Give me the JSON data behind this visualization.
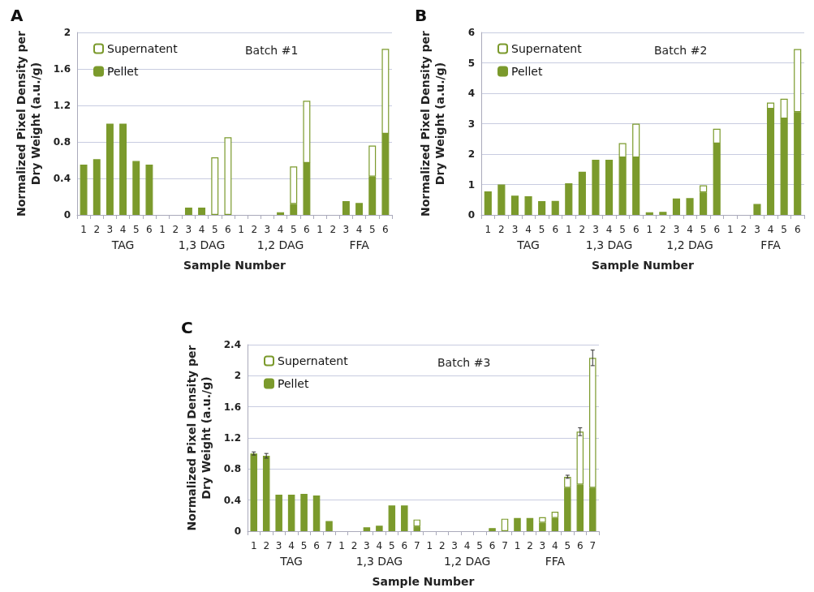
{
  "chart_data": [
    {
      "type": "bar",
      "title": "A",
      "subtitle": "Batch #1",
      "xlabel": "Sample Number",
      "ylabel": "Normalized Pixel Density per\nDry Weight (a.u./g)",
      "stacked": true,
      "legend": "top left",
      "grid": "y",
      "categories": [
        "1",
        "2",
        "3",
        "4",
        "5",
        "6",
        "1",
        "2",
        "3",
        "4",
        "5",
        "6",
        "1",
        "2",
        "3",
        "4",
        "5",
        "6",
        "1",
        "2",
        "3",
        "4",
        "5",
        "6"
      ],
      "annotations": [
        "TAG",
        "1,3 DAG",
        "1,2 DAG",
        "FFA"
      ],
      "ylim": [
        0,
        2
      ],
      "yticks": [
        0,
        0.4,
        0.8,
        1.2,
        1.6,
        2
      ],
      "series": [
        {
          "name": "Pellet",
          "color": "#7b9a2c",
          "values": [
            0.55,
            0.61,
            1.0,
            1.0,
            0.59,
            0.55,
            0,
            0,
            0.08,
            0.08,
            0,
            0,
            0,
            0,
            0,
            0.03,
            0.12,
            0.57,
            0,
            0,
            0.15,
            0.13,
            0.42,
            0.89
          ]
        },
        {
          "name": "Supernatent",
          "color": "#ffffff",
          "values": [
            0,
            0,
            0,
            0,
            0,
            0,
            0,
            0,
            0,
            0,
            0.63,
            0.85,
            0,
            0,
            0,
            0,
            0.41,
            0.68,
            0,
            0,
            0,
            0,
            0.34,
            0.93
          ]
        }
      ]
    },
    {
      "type": "bar",
      "title": "B",
      "subtitle": "Batch #2",
      "xlabel": "Sample Number",
      "ylabel": "Normalized Pixel Density per\nDry Weight (a.u./g)",
      "stacked": true,
      "legend": "top left",
      "grid": "y",
      "categories": [
        "1",
        "2",
        "3",
        "4",
        "5",
        "6",
        "1",
        "2",
        "3",
        "4",
        "5",
        "6",
        "1",
        "2",
        "3",
        "4",
        "5",
        "6",
        "1",
        "2",
        "3",
        "4",
        "5",
        "6"
      ],
      "annotations": [
        "TAG",
        "1,3 DAG",
        "1,2 DAG",
        "FFA"
      ],
      "ylim": [
        0,
        6
      ],
      "yticks": [
        0,
        1,
        2,
        3,
        4,
        5,
        6
      ],
      "series": [
        {
          "name": "Pellet",
          "color": "#7b9a2c",
          "values": [
            0.77,
            1.0,
            0.63,
            0.61,
            0.45,
            0.46,
            1.04,
            1.42,
            1.81,
            1.81,
            1.89,
            1.89,
            0.09,
            0.1,
            0.54,
            0.55,
            0.74,
            2.35,
            0,
            0,
            0.36,
            3.49,
            3.17,
            3.38
          ]
        },
        {
          "name": "Supernatent",
          "color": "#ffffff",
          "values": [
            0,
            0,
            0,
            0,
            0,
            0,
            0,
            0,
            0,
            0,
            0.47,
            1.11,
            0,
            0,
            0,
            0,
            0.23,
            0.48,
            0,
            0,
            0,
            0.2,
            0.65,
            2.07
          ]
        }
      ]
    },
    {
      "type": "bar",
      "title": "C",
      "subtitle": "Batch #3",
      "xlabel": "Sample Number",
      "ylabel": "Normalized Pixel Density per\nDry Weight (a.u./g)",
      "stacked": true,
      "legend": "top left",
      "grid": "y",
      "categories": [
        "1",
        "2",
        "3",
        "4",
        "5",
        "6",
        "7",
        "1",
        "2",
        "3",
        "4",
        "5",
        "6",
        "7",
        "1",
        "2",
        "3",
        "4",
        "5",
        "6",
        "7",
        "1",
        "2",
        "3",
        "4",
        "5",
        "6",
        "7"
      ],
      "annotations": [
        "TAG",
        "1,3 DAG",
        "1,2 DAG",
        "FFA"
      ],
      "ylim": [
        0,
        2.4
      ],
      "yticks": [
        0,
        0.4,
        0.8,
        1.2,
        1.6,
        2,
        2.4
      ],
      "series": [
        {
          "name": "Pellet",
          "color": "#7b9a2c",
          "values": [
            1.0,
            0.97,
            0.47,
            0.47,
            0.48,
            0.46,
            0.13,
            0,
            0,
            0.05,
            0.07,
            0.33,
            0.33,
            0.06,
            0,
            0,
            0,
            0,
            0,
            0.04,
            0,
            0.17,
            0.17,
            0.11,
            0.17,
            0.56,
            0.6,
            0.56
          ]
        },
        {
          "name": "Supernatent",
          "color": "#ffffff",
          "values": [
            0,
            0,
            0,
            0,
            0,
            0,
            0,
            0,
            0,
            0,
            0,
            0,
            0,
            0.09,
            0,
            0,
            0,
            0,
            0,
            0,
            0.16,
            0,
            0,
            0.07,
            0.08,
            0.14,
            0.68,
            1.67
          ],
          "errors": [
            0.02,
            0.03,
            null,
            null,
            null,
            null,
            null,
            null,
            null,
            null,
            null,
            null,
            null,
            null,
            null,
            null,
            null,
            null,
            null,
            null,
            null,
            null,
            null,
            null,
            null,
            0.02,
            0.05,
            0.1
          ]
        }
      ]
    }
  ]
}
